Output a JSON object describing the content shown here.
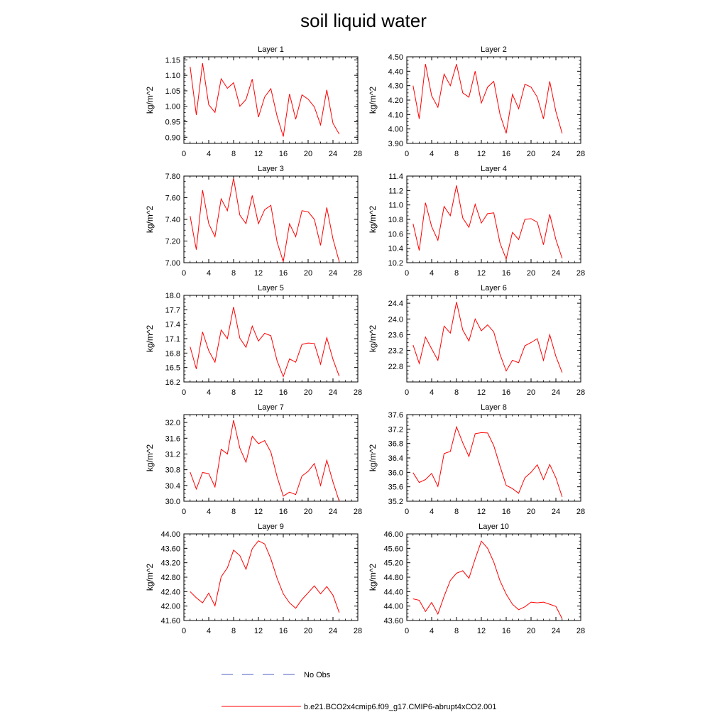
{
  "figure": {
    "title": "soil liquid water",
    "legend": {
      "obs_label": "No Obs",
      "model_label": "b.e21.BCO2x4cmip6.f09_g17.CMIP6-abrupt4xCO2.001",
      "obs_color": "#4a5fc1",
      "model_color": "#ff0000"
    }
  },
  "chart_data": [
    {
      "type": "line",
      "title": "Layer 1",
      "xlabel": "",
      "ylabel": "kg/m^2",
      "xlim": [
        0,
        28
      ],
      "ylim": [
        0.88,
        1.16
      ],
      "xticks": [
        "0",
        "4",
        "8",
        "12",
        "16",
        "20",
        "24",
        "28"
      ],
      "yticks": [
        "0.90",
        "0.95",
        "1.00",
        "1.05",
        "1.10",
        "1.15"
      ],
      "x": [
        1,
        2,
        3,
        4,
        5,
        6,
        7,
        8,
        9,
        10,
        11,
        12,
        13,
        14,
        15,
        16,
        17,
        18,
        19,
        20,
        21,
        22,
        23,
        24,
        25
      ],
      "series": [
        {
          "values": [
            1.128,
            0.972,
            1.139,
            1.005,
            0.98,
            1.089,
            1.058,
            1.076,
            1.0,
            1.022,
            1.088,
            0.965,
            1.03,
            1.057,
            0.968,
            0.902,
            1.04,
            0.958,
            1.037,
            1.023,
            0.998,
            0.94,
            1.053,
            0.945,
            0.91
          ]
        }
      ]
    },
    {
      "type": "line",
      "title": "Layer 2",
      "xlabel": "",
      "ylabel": "kg/m^2",
      "xlim": [
        0,
        28
      ],
      "ylim": [
        3.9,
        4.5
      ],
      "xticks": [
        "0",
        "4",
        "8",
        "12",
        "16",
        "20",
        "24",
        "28"
      ],
      "yticks": [
        "3.90",
        "4.00",
        "4.10",
        "4.20",
        "4.30",
        "4.40",
        "4.50"
      ],
      "x": [
        1,
        2,
        3,
        4,
        5,
        6,
        7,
        8,
        9,
        10,
        11,
        12,
        13,
        14,
        15,
        16,
        17,
        18,
        19,
        20,
        21,
        22,
        23,
        24,
        25
      ],
      "series": [
        {
          "values": [
            4.3,
            4.07,
            4.45,
            4.23,
            4.15,
            4.38,
            4.3,
            4.45,
            4.25,
            4.22,
            4.4,
            4.18,
            4.29,
            4.33,
            4.1,
            3.97,
            4.24,
            4.14,
            4.31,
            4.29,
            4.22,
            4.07,
            4.33,
            4.12,
            3.97
          ]
        }
      ]
    },
    {
      "type": "line",
      "title": "Layer 3",
      "xlabel": "",
      "ylabel": "kg/m^2",
      "xlim": [
        0,
        28
      ],
      "ylim": [
        7.0,
        7.8
      ],
      "xticks": [
        "0",
        "4",
        "8",
        "12",
        "16",
        "20",
        "24",
        "28"
      ],
      "yticks": [
        "7.00",
        "7.20",
        "7.40",
        "7.60",
        "7.80"
      ],
      "x": [
        1,
        2,
        3,
        4,
        5,
        6,
        7,
        8,
        9,
        10,
        11,
        12,
        13,
        14,
        15,
        16,
        17,
        18,
        19,
        20,
        21,
        22,
        23,
        24,
        25
      ],
      "series": [
        {
          "values": [
            7.43,
            7.12,
            7.67,
            7.36,
            7.24,
            7.59,
            7.48,
            7.78,
            7.44,
            7.36,
            7.62,
            7.36,
            7.49,
            7.53,
            7.19,
            7.01,
            7.36,
            7.24,
            7.48,
            7.47,
            7.4,
            7.16,
            7.51,
            7.22,
            7.01
          ]
        }
      ]
    },
    {
      "type": "line",
      "title": "Layer 4",
      "xlabel": "",
      "ylabel": "kg/m^2",
      "xlim": [
        0,
        28
      ],
      "ylim": [
        10.2,
        11.4
      ],
      "xticks": [
        "0",
        "4",
        "8",
        "12",
        "16",
        "20",
        "24",
        "28"
      ],
      "yticks": [
        "10.2",
        "10.4",
        "10.6",
        "10.8",
        "11.0",
        "11.2",
        "11.4"
      ],
      "x": [
        1,
        2,
        3,
        4,
        5,
        6,
        7,
        8,
        9,
        10,
        11,
        12,
        13,
        14,
        15,
        16,
        17,
        18,
        19,
        20,
        21,
        22,
        23,
        24,
        25
      ],
      "series": [
        {
          "values": [
            10.74,
            10.37,
            11.03,
            10.7,
            10.51,
            10.98,
            10.85,
            11.27,
            10.82,
            10.69,
            11.01,
            10.75,
            10.88,
            10.89,
            10.47,
            10.25,
            10.62,
            10.52,
            10.8,
            10.81,
            10.76,
            10.45,
            10.87,
            10.52,
            10.26
          ]
        }
      ]
    },
    {
      "type": "line",
      "title": "Layer 5",
      "xlabel": "",
      "ylabel": "kg/m^2",
      "xlim": [
        0,
        28
      ],
      "ylim": [
        16.2,
        18.0
      ],
      "xticks": [
        "0",
        "4",
        "8",
        "12",
        "16",
        "20",
        "24",
        "28"
      ],
      "yticks": [
        "16.2",
        "16.5",
        "16.8",
        "17.1",
        "17.4",
        "17.7",
        "18.0"
      ],
      "x": [
        1,
        2,
        3,
        4,
        5,
        6,
        7,
        8,
        9,
        10,
        11,
        12,
        13,
        14,
        15,
        16,
        17,
        18,
        19,
        20,
        21,
        22,
        23,
        24,
        25
      ],
      "series": [
        {
          "values": [
            16.93,
            16.47,
            17.24,
            16.85,
            16.61,
            17.28,
            17.1,
            17.76,
            17.11,
            16.92,
            17.36,
            17.05,
            17.21,
            17.16,
            16.64,
            16.31,
            16.68,
            16.61,
            16.98,
            17.01,
            17.0,
            16.57,
            17.12,
            16.67,
            16.32
          ]
        }
      ]
    },
    {
      "type": "line",
      "title": "Layer 6",
      "xlabel": "",
      "ylabel": "kg/m^2",
      "xlim": [
        0,
        28
      ],
      "ylim": [
        22.4,
        24.6
      ],
      "xticks": [
        "0",
        "4",
        "8",
        "12",
        "16",
        "20",
        "24",
        "28"
      ],
      "yticks": [
        "22.8",
        "23.2",
        "23.6",
        "24.0",
        "24.4"
      ],
      "x": [
        1,
        2,
        3,
        4,
        5,
        6,
        7,
        8,
        9,
        10,
        11,
        12,
        13,
        14,
        15,
        16,
        17,
        18,
        19,
        20,
        21,
        22,
        23,
        24,
        25
      ],
      "series": [
        {
          "values": [
            23.34,
            22.87,
            23.54,
            23.24,
            22.95,
            23.82,
            23.64,
            24.43,
            23.72,
            23.44,
            24.0,
            23.7,
            23.85,
            23.67,
            23.1,
            22.68,
            22.95,
            22.89,
            23.32,
            23.4,
            23.5,
            22.95,
            23.6,
            23.05,
            22.64
          ]
        }
      ]
    },
    {
      "type": "line",
      "title": "Layer 7",
      "xlabel": "",
      "ylabel": "kg/m^2",
      "xlim": [
        0,
        28
      ],
      "ylim": [
        30.0,
        32.2
      ],
      "xticks": [
        "0",
        "4",
        "8",
        "12",
        "16",
        "20",
        "24",
        "28"
      ],
      "yticks": [
        "30.0",
        "30.4",
        "30.8",
        "31.2",
        "31.6",
        "32.0"
      ],
      "x": [
        1,
        2,
        3,
        4,
        5,
        6,
        7,
        8,
        9,
        10,
        11,
        12,
        13,
        14,
        15,
        16,
        17,
        18,
        19,
        20,
        21,
        22,
        23,
        24,
        25
      ],
      "series": [
        {
          "values": [
            30.74,
            30.31,
            30.73,
            30.7,
            30.36,
            31.32,
            31.2,
            32.06,
            31.35,
            30.99,
            31.65,
            31.46,
            31.54,
            31.25,
            30.62,
            30.13,
            30.23,
            30.17,
            30.64,
            30.76,
            30.96,
            30.4,
            31.04,
            30.49,
            30.0
          ]
        }
      ]
    },
    {
      "type": "line",
      "title": "Layer 8",
      "xlabel": "",
      "ylabel": "kg/m^2",
      "xlim": [
        0,
        28
      ],
      "ylim": [
        35.2,
        37.6
      ],
      "xticks": [
        "0",
        "4",
        "8",
        "12",
        "16",
        "20",
        "24",
        "28"
      ],
      "yticks": [
        "35.2",
        "35.6",
        "36.0",
        "36.4",
        "36.8",
        "37.2",
        "37.6"
      ],
      "x": [
        1,
        2,
        3,
        4,
        5,
        6,
        7,
        8,
        9,
        10,
        11,
        12,
        13,
        14,
        15,
        16,
        17,
        18,
        19,
        20,
        21,
        22,
        23,
        24,
        25
      ],
      "series": [
        {
          "values": [
            35.99,
            35.72,
            35.8,
            35.97,
            35.61,
            36.52,
            36.58,
            37.26,
            36.82,
            36.44,
            37.07,
            37.1,
            37.09,
            36.74,
            36.17,
            35.64,
            35.55,
            35.42,
            35.85,
            36.0,
            36.21,
            35.8,
            36.22,
            35.85,
            35.32
          ]
        }
      ]
    },
    {
      "type": "line",
      "title": "Layer 9",
      "xlabel": "",
      "ylabel": "kg/m^2",
      "xlim": [
        0,
        28
      ],
      "ylim": [
        41.6,
        44.0
      ],
      "xticks": [
        "0",
        "4",
        "8",
        "12",
        "16",
        "20",
        "24",
        "28"
      ],
      "yticks": [
        "41.60",
        "42.00",
        "42.40",
        "42.80",
        "43.20",
        "43.60",
        "44.00"
      ],
      "x": [
        1,
        2,
        3,
        4,
        5,
        6,
        7,
        8,
        9,
        10,
        11,
        12,
        13,
        14,
        15,
        16,
        17,
        18,
        19,
        20,
        21,
        22,
        23,
        24,
        25
      ],
      "series": [
        {
          "values": [
            42.4,
            42.23,
            42.09,
            42.36,
            42.01,
            42.81,
            43.06,
            43.55,
            43.4,
            43.02,
            43.59,
            43.81,
            43.72,
            43.31,
            42.77,
            42.34,
            42.09,
            41.94,
            42.18,
            42.37,
            42.56,
            42.34,
            42.54,
            42.3,
            41.82
          ]
        }
      ]
    },
    {
      "type": "line",
      "title": "Layer 10",
      "xlabel": "",
      "ylabel": "kg/m^2",
      "xlim": [
        0,
        28
      ],
      "ylim": [
        43.6,
        46.0
      ],
      "xticks": [
        "0",
        "4",
        "8",
        "12",
        "16",
        "20",
        "24",
        "28"
      ],
      "yticks": [
        "43.60",
        "44.00",
        "44.40",
        "44.80",
        "45.20",
        "45.60",
        "46.00"
      ],
      "x": [
        1,
        2,
        3,
        4,
        5,
        6,
        7,
        8,
        9,
        10,
        11,
        12,
        13,
        14,
        15,
        16,
        17,
        18,
        19,
        20,
        21,
        22,
        23,
        24,
        25
      ],
      "series": [
        {
          "values": [
            44.2,
            44.16,
            43.85,
            44.1,
            43.78,
            44.27,
            44.71,
            44.91,
            44.98,
            44.77,
            45.31,
            45.8,
            45.6,
            45.22,
            44.7,
            44.33,
            44.05,
            43.9,
            43.98,
            44.11,
            44.09,
            44.11,
            44.05,
            43.99,
            43.65
          ]
        }
      ]
    }
  ]
}
